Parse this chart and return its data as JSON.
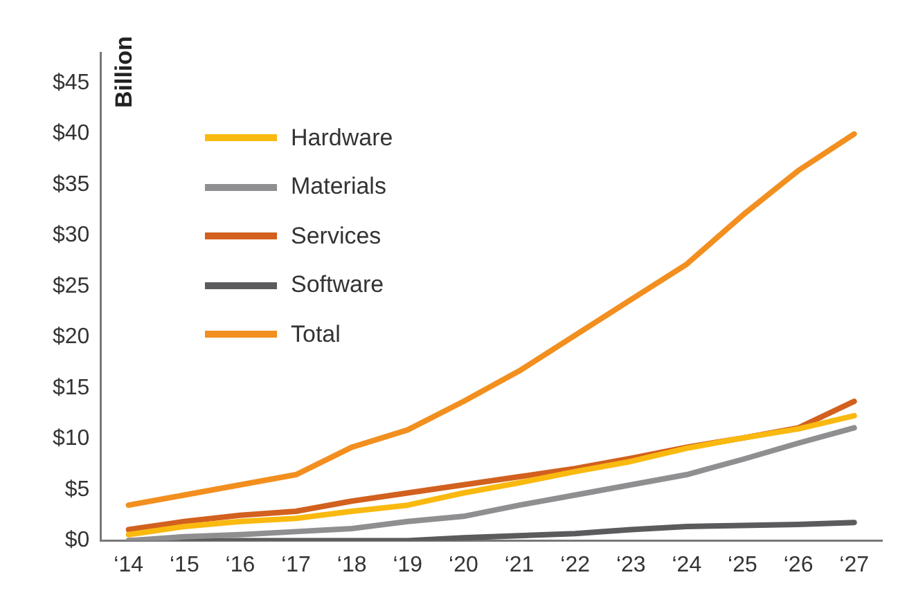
{
  "chart_data": {
    "type": "line",
    "ylabel": "Billion",
    "categories": [
      "‘14",
      "‘15",
      "‘16",
      "‘17",
      "‘18",
      "‘19",
      "‘20",
      "‘21",
      "‘22",
      "‘23",
      "‘24",
      "‘25",
      "‘26",
      "‘27"
    ],
    "series": [
      {
        "name": "Hardware",
        "color": "#f9b90f",
        "values": [
          0.6,
          1.4,
          1.9,
          2.2,
          2.9,
          3.5,
          4.7,
          5.7,
          6.8,
          7.8,
          9.1,
          10.1,
          11,
          12.3
        ]
      },
      {
        "name": "Materials",
        "color": "#8f8f91",
        "values": [
          0,
          0.4,
          0.6,
          0.9,
          1.2,
          1.9,
          2.4,
          3.5,
          4.5,
          5.5,
          6.5,
          8,
          9.6,
          11.1
        ]
      },
      {
        "name": "Services",
        "color": "#d2601e",
        "values": [
          1.1,
          1.9,
          2.5,
          2.9,
          3.9,
          4.7,
          5.5,
          6.3,
          7.1,
          8.1,
          9.2,
          10.1,
          11.1,
          13.7
        ]
      },
      {
        "name": "Software",
        "color": "#5b5b5d",
        "values": [
          0,
          0,
          0,
          0,
          0,
          0,
          0.3,
          0.5,
          0.7,
          1.1,
          1.4,
          1.5,
          1.6,
          1.8
        ]
      },
      {
        "name": "Total",
        "color": "#f28f1f",
        "values": [
          3.5,
          4.5,
          5.5,
          6.5,
          9.2,
          10.9,
          13.7,
          16.7,
          20.2,
          23.7,
          27.2,
          32,
          36.4,
          40
        ]
      }
    ],
    "ylim": [
      0,
      48
    ],
    "yticks": [
      {
        "value": 0,
        "label": "$0"
      },
      {
        "value": 5,
        "label": "$5"
      },
      {
        "value": 10,
        "label": "$10"
      },
      {
        "value": 15,
        "label": "$15"
      },
      {
        "value": 20,
        "label": "$20"
      },
      {
        "value": 25,
        "label": "$25"
      },
      {
        "value": 30,
        "label": "$30"
      },
      {
        "value": 35,
        "label": "$35"
      },
      {
        "value": 40,
        "label": "$40"
      },
      {
        "value": 45,
        "label": "$45"
      }
    ],
    "grid": false,
    "legend": "top left",
    "marker": "none",
    "line_style": "solid"
  }
}
